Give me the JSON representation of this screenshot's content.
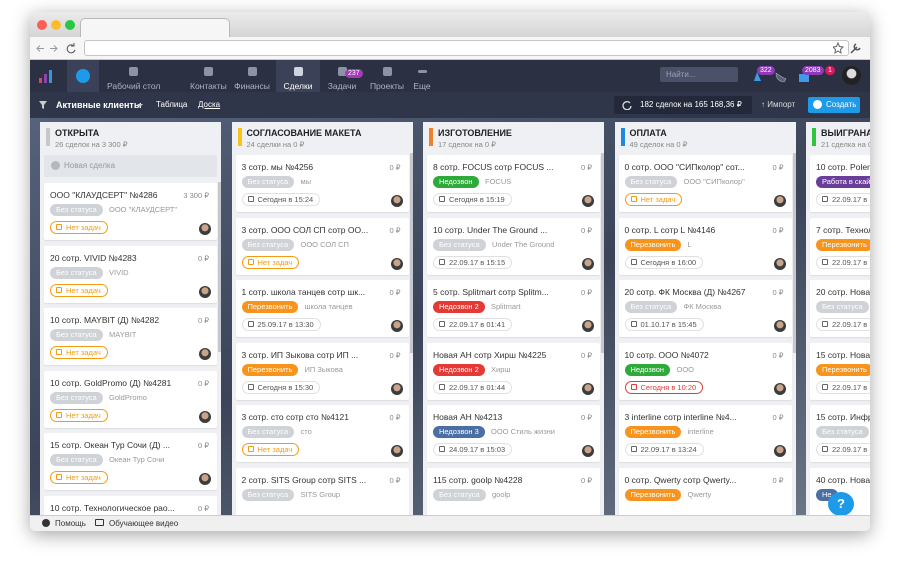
{
  "nav": {
    "items": [
      {
        "label": "Рабочий стол"
      },
      {
        "label": "Контакты"
      },
      {
        "label": "Финансы"
      },
      {
        "label": "Сделки"
      },
      {
        "label": "Задачи",
        "badge": 237
      },
      {
        "label": "Проекты"
      },
      {
        "label": "Еще"
      }
    ],
    "search": "Найти...",
    "badges": [
      322,
      2083,
      1
    ]
  },
  "subheader": {
    "title": "Активные клиенты",
    "tabs": [
      "Таблица",
      "Доска"
    ],
    "summary": "182 сделок на 165 168,36 ₽",
    "import": "Импорт",
    "create": "Создать"
  },
  "columns": [
    {
      "title": "ОТКРЫТА",
      "color": "#c8c8c8",
      "summary": "26 сделок на 3 300 ₽",
      "new_deal": "Новая сделка",
      "cards": [
        {
          "title": "ООО \"КЛАУДСЕРТ\" №4286",
          "amount": "3 300 ₽",
          "status": "Без статуса",
          "status_color": "#cfd2d6",
          "company": "ООО \"КЛАУДСЕРТ\"",
          "task": "Нет задач",
          "task_color": "#f39c12"
        },
        {
          "title": "20 сотр. VIVID №4283",
          "amount": "0 ₽",
          "status": "Без статуса",
          "status_color": "#cfd2d6",
          "company": "VIVID",
          "task": "Нет задач",
          "task_color": "#f39c12"
        },
        {
          "title": "10 сотр. MAYBIT (Д) №4282",
          "amount": "0 ₽",
          "status": "Без статуса",
          "status_color": "#cfd2d6",
          "company": "MAYBIT",
          "task": "Нет задач",
          "task_color": "#f39c12"
        },
        {
          "title": "10 сотр. GoldPromo (Д) №4281",
          "amount": "0 ₽",
          "status": "Без статуса",
          "status_color": "#cfd2d6",
          "company": "GoldPromo",
          "task": "Нет задач",
          "task_color": "#f39c12"
        },
        {
          "title": "15 сотр. Океан Тур Сочи (Д) ...",
          "amount": "0 ₽",
          "status": "Без статуса",
          "status_color": "#cfd2d6",
          "company": "Океан Тур Сочи",
          "task": "Нет задач",
          "task_color": "#f39c12"
        },
        {
          "title": "10 сотр. Технологическое рао...",
          "amount": "0 ₽"
        }
      ]
    },
    {
      "title": "СОГЛАСОВАНИЕ МАКЕТА",
      "color": "#f5c518",
      "summary": "24 сделки на 0 ₽",
      "cards": [
        {
          "title": "3 сотр. мы №4256",
          "amount": "0 ₽",
          "status": "Без статуса",
          "status_color": "#cfd2d6",
          "company": "мы",
          "task": "Сегодня в 15:24",
          "task_color": "#666666"
        },
        {
          "title": "3 сотр. ООО СОЛ СП  сотр ОО...",
          "amount": "0 ₽",
          "status": "Без статуса",
          "status_color": "#cfd2d6",
          "company": "ООО СОЛ СП",
          "task": "Нет задач",
          "task_color": "#f39c12"
        },
        {
          "title": "1 сотр. школа танцев  сотр шк...",
          "amount": "0 ₽",
          "status": "Перезвонить",
          "status_color": "#f7941d",
          "company": "школа танцев",
          "task": "25.09.17 в 13:30",
          "task_color": "#666666"
        },
        {
          "title": "3 сотр. ИП Зыкова  сотр ИП ...",
          "amount": "0 ₽",
          "status": "Перезвонить",
          "status_color": "#f7941d",
          "company": "ИП Зыкова",
          "task": "Сегодня в 15:30",
          "task_color": "#666666"
        },
        {
          "title": "3 сотр. сто  сотр сто №4121",
          "amount": "0 ₽",
          "status": "Без статуса",
          "status_color": "#cfd2d6",
          "company": "сто",
          "task": "Нет задач",
          "task_color": "#f39c12"
        },
        {
          "title": "2 сотр. SITS Group  сотр SITS ...",
          "amount": "0 ₽",
          "status": "Без статуса",
          "status_color": "#cfd2d6",
          "company": "SITS Group"
        }
      ]
    },
    {
      "title": "ИЗГОТОВЛЕНИЕ",
      "color": "#f0812b",
      "summary": "17 сделок на 0 ₽",
      "cards": [
        {
          "title": "8 сотр. FOCUS  сотр FOCUS ...",
          "amount": "0 ₽",
          "status": "Недозвон",
          "status_color": "#2eaa3a",
          "company": "FOCUS",
          "task": "Сегодня в 15:19",
          "task_color": "#666666"
        },
        {
          "title": "10  сотр. Under The Ground ...",
          "amount": "0 ₽",
          "status": "Без статуса",
          "status_color": "#cfd2d6",
          "company": "Under The Ground",
          "task": "22.09.17 в 15:15",
          "task_color": "#666666"
        },
        {
          "title": "5 сотр. Splitmart  сотр Splitm...",
          "amount": "0 ₽",
          "status": "Недозвон 2",
          "status_color": "#e53935",
          "company": "Splitmart",
          "task": "22.09.17 в 01:41",
          "task_color": "#666666"
        },
        {
          "title": "Новая АН  сотр Хирш №4225",
          "amount": "0 ₽",
          "status": "Недозвон 2",
          "status_color": "#e53935",
          "company": "Хирш",
          "task": "22.09.17 в 01:44",
          "task_color": "#666666"
        },
        {
          "title": "Новая АН  №4213",
          "amount": "0 ₽",
          "status": "Недозвон 3",
          "status_color": "#4a6fa5",
          "company": "ООО Стиль жизни",
          "task": "24.09.17 в 15:03",
          "task_color": "#666666"
        },
        {
          "title": "115 сотр. goolp №4228",
          "amount": "0 ₽",
          "status": "Без статуса",
          "status_color": "#cfd2d6",
          "company": "goolp"
        }
      ]
    },
    {
      "title": "ОПЛАТА",
      "color": "#1e88e5",
      "summary": "49 сделок на 0 ₽",
      "cards": [
        {
          "title": "0 сотр. ООО \"СИПколор\"  сот...",
          "amount": "0 ₽",
          "status": "Без статуса",
          "status_color": "#cfd2d6",
          "company": "ООО \"СИПколор\"",
          "task": "Нет задач",
          "task_color": "#f39c12"
        },
        {
          "title": "0 сотр. L  сотр L №4146",
          "amount": "0 ₽",
          "status": "Перезвонить",
          "status_color": "#f7941d",
          "company": "L",
          "task": "Сегодня в 16:00",
          "task_color": "#666666"
        },
        {
          "title": "20 сотр. ФК Москва (Д) №4267",
          "amount": "0 ₽",
          "status": "Без статуса",
          "status_color": "#cfd2d6",
          "company": "ФК Москва",
          "task": "01.10.17 в 15:45",
          "task_color": "#666666"
        },
        {
          "title": "10 сотр. ООО №4072",
          "amount": "0 ₽",
          "status": "Недозвон",
          "status_color": "#2eaa3a",
          "company": "ООО",
          "task": "Сегодня в 10:20",
          "task_color": "#e53935"
        },
        {
          "title": "3 interline  сотр interline №4...",
          "amount": "0 ₽",
          "status": "Перезвонить",
          "status_color": "#f7941d",
          "company": "interline",
          "task": "22.09.17 в 13:24",
          "task_color": "#666666"
        },
        {
          "title": "0 сотр. Qwerty  сотр Qwerty...",
          "amount": "0 ₽",
          "status": "Перезвонить",
          "status_color": "#f7941d",
          "company": "Qwerty"
        }
      ]
    },
    {
      "title": "ВЫИГРАНА",
      "color": "#2ec43f",
      "summary": "21 сделка на 0 ₽",
      "cards": [
        {
          "title": "10 сотр. Polerie",
          "status": "Работа в скайп",
          "status_color": "#6a3d9a",
          "task": "22.09.17 в",
          "task_color": "#666666"
        },
        {
          "title": "7 сотр. Техноло",
          "status": "Перезвонить",
          "status_color": "#f7941d",
          "task": "22.09.17 в",
          "task_color": "#666666"
        },
        {
          "title": "20 сотр. Новая",
          "status": "Без статуса",
          "status_color": "#cfd2d6",
          "task": "22.09.17 в",
          "task_color": "#666666"
        },
        {
          "title": "15 сотр. Новая",
          "status": "Перезвонить",
          "status_color": "#f7941d",
          "task": "22.09.17 в",
          "task_color": "#666666"
        },
        {
          "title": "15 сотр. Инфра",
          "status": "Без статуса",
          "status_color": "#cfd2d6",
          "task": "22.09.17 в",
          "task_color": "#666666"
        },
        {
          "title": "40 сотр. Новая",
          "status": "Не",
          "status_color": "#4a6fa5"
        }
      ]
    }
  ],
  "footer": {
    "help": "Помощь",
    "video": "Обучающее видео"
  }
}
